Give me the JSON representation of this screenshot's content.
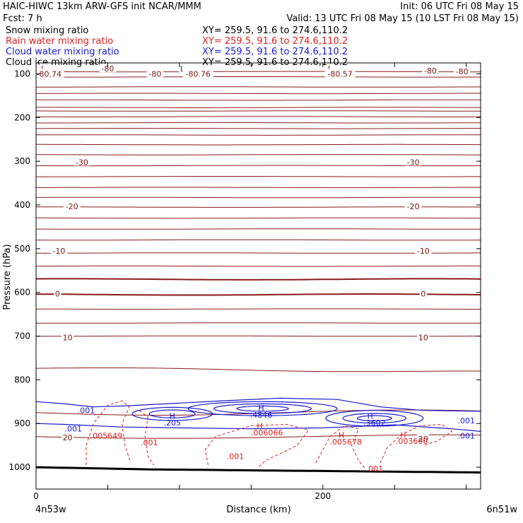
{
  "header": {
    "line1_left": "HAIC-HIWC 13km ARW-GFS init   NCAR/MMM",
    "line1_right": "Init: 06 UTC Fri 08 May 15",
    "line2_left": "Fcst:     7 h",
    "line2_right": "Valid: 13 UTC Fri 08 May 15 (10 LST Fri 08 May 15)"
  },
  "chart_data": {
    "type": "line",
    "title": "",
    "xlabel": "Distance (km)",
    "ylabel": "Pressure (hPa)",
    "xlim": [
      0,
      310
    ],
    "ylim": [
      1050,
      75
    ],
    "y_scale": "linear",
    "y_inverted": true,
    "x_ticks": [
      {
        "value": 0,
        "label": "0"
      },
      {
        "value": 200,
        "label": "200"
      }
    ],
    "x_minor_ticks": [
      50,
      100,
      150,
      250,
      300
    ],
    "y_ticks": [
      100,
      200,
      300,
      400,
      500,
      600,
      700,
      800,
      900,
      1000
    ],
    "endpoint_labels": {
      "left": "4n53w",
      "right": "6n51w"
    },
    "legend": {
      "placement": "top-left",
      "items": [
        {
          "name": "Snow mixing ratio",
          "xy": "XY=  259.5,  91.6  to  274.6,110.2",
          "color": "#000000"
        },
        {
          "name": "Rain water mixing ratio",
          "xy": "XY=  259.5,  91.6  to  274.6,110.2",
          "color": "#dd2222"
        },
        {
          "name": "Cloud water mixing ratio",
          "xy": "XY=  259.5,  91.6  to  274.6,110.2",
          "color": "#1a1ad0"
        },
        {
          "name": "Cloud ice mixing ratio",
          "xy": "XY=  259.5,  91.6  to  274.6,110.2",
          "color": "#000000"
        }
      ]
    },
    "temperature_contour_levels_hPa": [
      95,
      107,
      130,
      145,
      160,
      177,
      185,
      198,
      212,
      225,
      240,
      262,
      285,
      310,
      335,
      360,
      383,
      405,
      430,
      455,
      480,
      510,
      540,
      570,
      605,
      638,
      670,
      700,
      773
    ],
    "temperature_labels": [
      {
        "text": "L",
        "x": 5,
        "p": 88
      },
      {
        "text": "-80.74",
        "x": 9,
        "p": 100
      },
      {
        "text": "-80",
        "x": 50,
        "p": 88
      },
      {
        "text": "L",
        "x": 102,
        "p": 88
      },
      {
        "text": "-80",
        "x": 83,
        "p": 100
      },
      {
        "text": "-80.76",
        "x": 113,
        "p": 100
      },
      {
        "text": "L",
        "x": 205,
        "p": 88
      },
      {
        "text": "-80.57",
        "x": 212,
        "p": 100
      },
      {
        "text": "-80",
        "x": 275,
        "p": 93
      },
      {
        "text": "-80",
        "x": 297,
        "p": 94
      },
      {
        "text": "-30",
        "x": 32,
        "p": 302
      },
      {
        "text": "-30",
        "x": 263,
        "p": 302
      },
      {
        "text": "-20",
        "x": 25,
        "p": 403
      },
      {
        "text": "-20",
        "x": 263,
        "p": 403
      },
      {
        "text": "-10",
        "x": 16,
        "p": 505
      },
      {
        "text": "-10",
        "x": 270,
        "p": 505
      },
      {
        "text": "0",
        "x": 15,
        "p": 603
      },
      {
        "text": "0",
        "x": 270,
        "p": 603
      },
      {
        "text": "10",
        "x": 22,
        "p": 703
      },
      {
        "text": "10",
        "x": 270,
        "p": 703
      },
      {
        "text": "20",
        "x": 22,
        "p": 932
      },
      {
        "text": "20",
        "x": 270,
        "p": 935
      }
    ],
    "cloud_water_labels": [
      {
        "text": ".001",
        "x": 35,
        "p": 870
      },
      {
        "text": "H",
        "x": 95,
        "p": 883
      },
      {
        "text": ".205",
        "x": 95,
        "p": 898
      },
      {
        "text": "H",
        "x": 157,
        "p": 864
      },
      {
        "text": ".4846",
        "x": 157,
        "p": 880
      },
      {
        "text": "H",
        "x": 233,
        "p": 883
      },
      {
        "text": ".3602",
        "x": 236,
        "p": 898
      },
      {
        "text": ".001",
        "x": 300,
        "p": 893
      },
      {
        "text": ".001",
        "x": 300,
        "p": 928
      },
      {
        "text": ".001",
        "x": 26,
        "p": 912
      }
    ],
    "rain_water_labels": [
      {
        "text": ".005649",
        "x": 49,
        "p": 928
      },
      {
        "text": ".001",
        "x": 79,
        "p": 943
      },
      {
        "text": "H",
        "x": 156,
        "p": 905
      },
      {
        "text": ".006066",
        "x": 161,
        "p": 921
      },
      {
        "text": "H",
        "x": 213,
        "p": 926
      },
      {
        "text": ".005678",
        "x": 216,
        "p": 942
      },
      {
        "text": "H",
        "x": 256,
        "p": 926
      },
      {
        "text": ".003600",
        "x": 262,
        "p": 940
      },
      {
        "text": ".001",
        "x": 139,
        "p": 975
      },
      {
        "text": ".001",
        "x": 236,
        "p": 1003
      }
    ]
  }
}
